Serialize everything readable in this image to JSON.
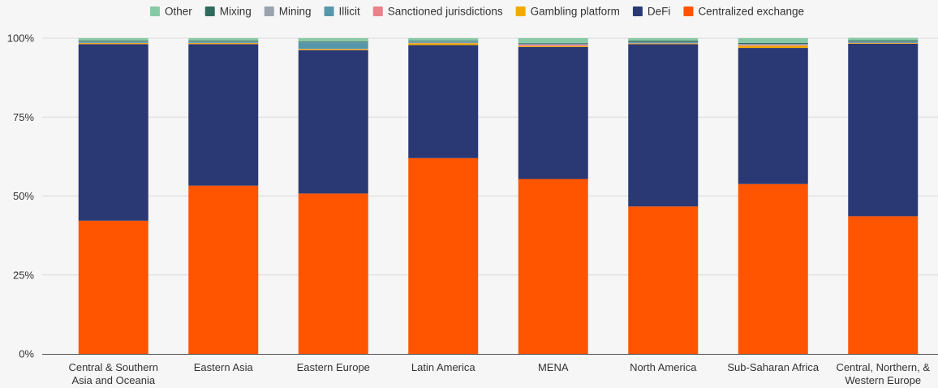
{
  "chart_data": {
    "type": "bar",
    "stacked": true,
    "title": "",
    "xlabel": "",
    "ylabel": "",
    "ylim": [
      0,
      100
    ],
    "y_ticks": [
      "0%",
      "25%",
      "50%",
      "75%",
      "100%"
    ],
    "y_tick_values": [
      0,
      25,
      50,
      75,
      100
    ],
    "grid": true,
    "legend_position": "top",
    "categories": [
      [
        "Central & Southern",
        "Asia and Oceania"
      ],
      [
        "Eastern Asia"
      ],
      [
        "Eastern Europe"
      ],
      [
        "Latin America"
      ],
      [
        "MENA"
      ],
      [
        "North America"
      ],
      [
        "Sub-Saharan Africa"
      ],
      [
        "Central, Northern, &",
        "Western Europe"
      ]
    ],
    "legend_order": [
      "Other",
      "Mixing",
      "Mining",
      "Illicit",
      "Sanctioned jurisdictions",
      "Gambling platform",
      "DeFi",
      "Centralized exchange"
    ],
    "series": [
      {
        "name": "Centralized exchange",
        "color": "#ff5500",
        "values": [
          42.2,
          53.3,
          50.8,
          62.0,
          55.4,
          46.7,
          53.8,
          43.6
        ]
      },
      {
        "name": "DeFi",
        "color": "#2a3874",
        "values": [
          55.9,
          44.8,
          45.4,
          35.8,
          41.8,
          51.4,
          43.1,
          54.6
        ]
      },
      {
        "name": "Gambling platform",
        "color": "#f2aa00",
        "values": [
          0.3,
          0.3,
          0.3,
          0.6,
          0.3,
          0.2,
          0.7,
          0.2
        ]
      },
      {
        "name": "Sanctioned jurisdictions",
        "color": "#e8828b",
        "values": [
          0.1,
          0.1,
          0.1,
          0.1,
          0.5,
          0.1,
          0.3,
          0.1
        ]
      },
      {
        "name": "Illicit",
        "color": "#5797a9",
        "values": [
          0.3,
          0.3,
          2.1,
          0.4,
          0.2,
          0.3,
          0.2,
          0.3
        ]
      },
      {
        "name": "Mining",
        "color": "#9aa3ad",
        "values": [
          0.1,
          0.1,
          0.1,
          0.1,
          0.1,
          0.1,
          0.1,
          0.1
        ]
      },
      {
        "name": "Mixing",
        "color": "#2f6b5c",
        "values": [
          0.3,
          0.3,
          0.2,
          0.2,
          0.2,
          0.4,
          0.3,
          0.4
        ]
      },
      {
        "name": "Other",
        "color": "#88c9a6",
        "values": [
          0.8,
          0.8,
          1.0,
          0.8,
          1.5,
          0.8,
          1.5,
          0.8
        ]
      }
    ]
  }
}
